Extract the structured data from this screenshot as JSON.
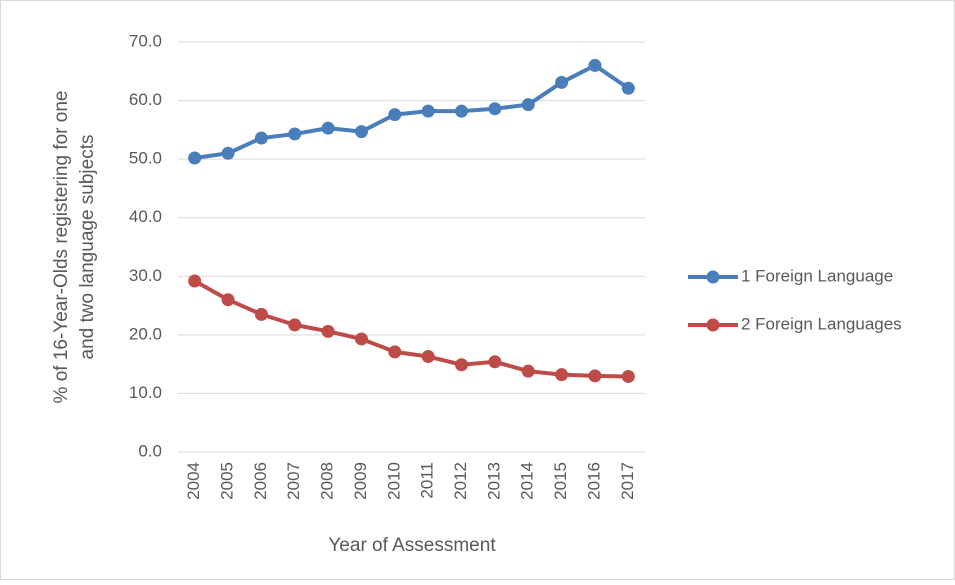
{
  "chart_data": {
    "type": "line",
    "ylabel": [
      "% of 16-Year-Olds registering for one",
      "and two language subjects"
    ],
    "xlabel": "Year of Assessment",
    "categories": [
      "2004",
      "2005",
      "2006",
      "2007",
      "2008",
      "2009",
      "2010",
      "2011",
      "2012",
      "2013",
      "2014",
      "2015",
      "2016",
      "2017"
    ],
    "series": [
      {
        "name": "1 Foreign Language",
        "color": "#4a7ebb",
        "values": [
          50.2,
          51.0,
          53.6,
          54.3,
          55.3,
          54.7,
          57.6,
          58.2,
          58.2,
          58.6,
          59.3,
          63.1,
          66.0,
          62.1
        ]
      },
      {
        "name": "2 Foreign Languages",
        "color": "#be4b48",
        "values": [
          29.2,
          26.0,
          23.5,
          21.7,
          20.6,
          19.3,
          17.1,
          16.3,
          14.9,
          15.4,
          13.8,
          13.2,
          13.0,
          12.9
        ]
      }
    ],
    "ylim": [
      0,
      70
    ],
    "yticks": [
      {
        "value": 0,
        "label": "0.0"
      },
      {
        "value": 10,
        "label": "10.0"
      },
      {
        "value": 20,
        "label": "20.0"
      },
      {
        "value": 30,
        "label": "30.0"
      },
      {
        "value": 40,
        "label": "40.0"
      },
      {
        "value": 50,
        "label": "50.0"
      },
      {
        "value": 60,
        "label": "60.0"
      },
      {
        "value": 70,
        "label": "70.0"
      }
    ],
    "grid": true,
    "legend": "right"
  }
}
